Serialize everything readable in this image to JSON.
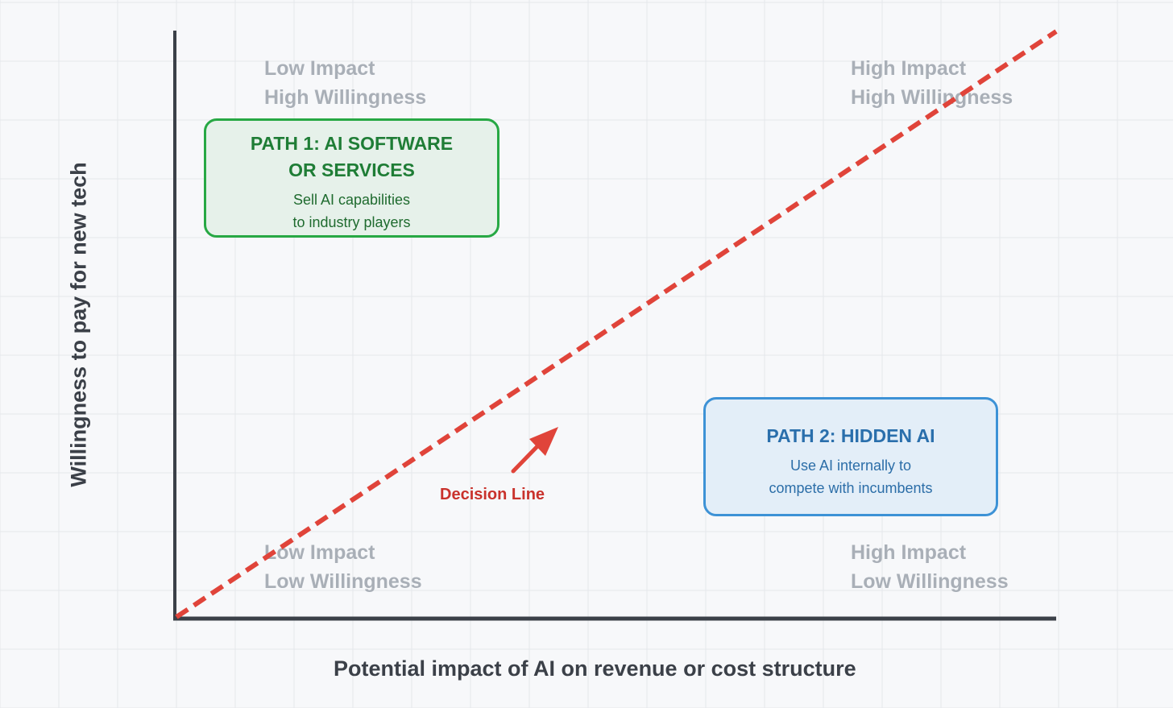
{
  "axes": {
    "x_title": "Potential impact of AI on revenue or cost structure",
    "y_title": "Willingness to pay for new tech"
  },
  "quadrants": {
    "top_left": {
      "line1": "Low Impact",
      "line2": "High Willingness"
    },
    "top_right": {
      "line1": "High Impact",
      "line2": "High Willingness"
    },
    "bottom_left": {
      "line1": "Low Impact",
      "line2": "Low Willingness"
    },
    "bottom_right": {
      "line1": "High Impact",
      "line2": "Low Willingness"
    }
  },
  "path1": {
    "title_line1": "PATH 1: AI SOFTWARE",
    "title_line2": "OR SERVICES",
    "text_line1": "Sell AI capabilities",
    "text_line2": "to industry players"
  },
  "path2": {
    "title": "PATH 2: HIDDEN AI",
    "text_line1": "Use AI internally to",
    "text_line2": "compete with incumbents"
  },
  "decision_line": {
    "label": "Decision Line"
  },
  "colors": {
    "background": "#f7f8fa",
    "grid": "#e4e7eb",
    "axis": "#3b4048",
    "decision": "#e0443a",
    "path1_border": "#27a844",
    "path2_border": "#3d92d6",
    "quadrant_text": "#a9afb7"
  }
}
